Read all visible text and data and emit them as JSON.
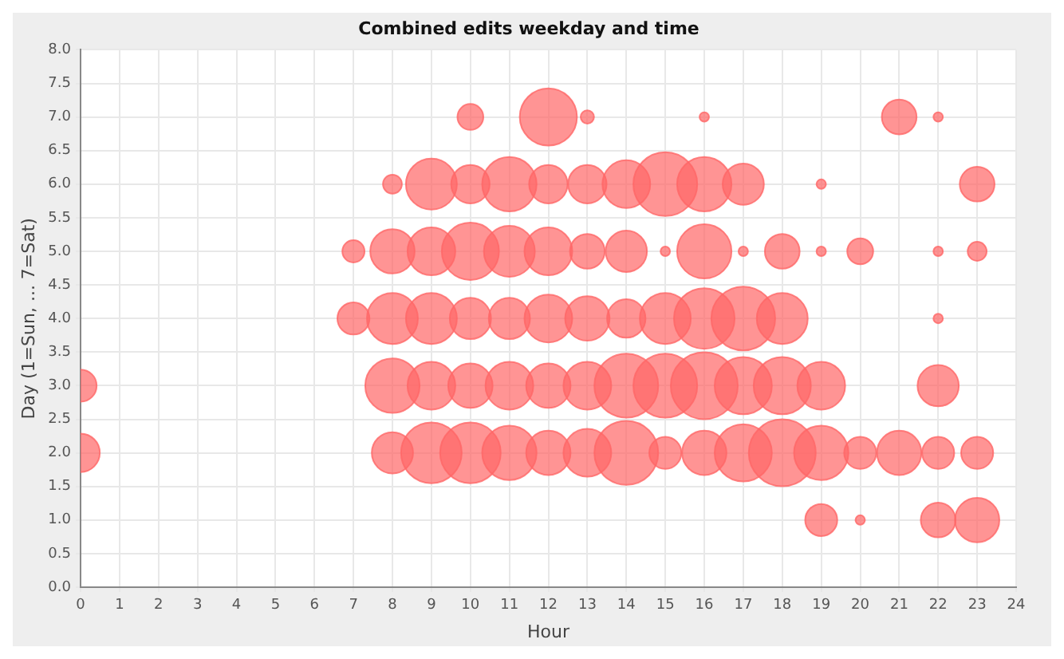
{
  "chart_data": {
    "type": "bubble",
    "title": "Combined edits weekday and time",
    "xlabel": "Hour",
    "ylabel": "Day (1=Sun, ... 7=Sat)",
    "grid": true,
    "legend": false,
    "color": "#ff6666",
    "xlim": [
      0,
      24
    ],
    "xticks": [
      0,
      1,
      2,
      3,
      4,
      5,
      6,
      7,
      8,
      9,
      10,
      11,
      12,
      13,
      14,
      15,
      16,
      17,
      18,
      19,
      20,
      21,
      22,
      23,
      24
    ],
    "ylim": [
      0,
      8
    ],
    "yticks": [
      {
        "value": 0,
        "label": "0.0"
      },
      {
        "value": 0.5,
        "label": "0.5"
      },
      {
        "value": 1,
        "label": "1.0"
      },
      {
        "value": 1.5,
        "label": "1.5"
      },
      {
        "value": 2,
        "label": "2.0"
      },
      {
        "value": 2.5,
        "label": "2.5"
      },
      {
        "value": 3,
        "label": "3.0"
      },
      {
        "value": 3.5,
        "label": "3.5"
      },
      {
        "value": 4,
        "label": "4.0"
      },
      {
        "value": 4.5,
        "label": "4.5"
      },
      {
        "value": 5,
        "label": "5.0"
      },
      {
        "value": 5.5,
        "label": "5.5"
      },
      {
        "value": 6,
        "label": "6.0"
      },
      {
        "value": 6.5,
        "label": "6.5"
      },
      {
        "value": 7,
        "label": "7.0"
      },
      {
        "value": 7.5,
        "label": "7.5"
      },
      {
        "value": 8,
        "label": "8.0"
      }
    ],
    "x": [
      10,
      12,
      13,
      16,
      21,
      22,
      8,
      9,
      10,
      11,
      12,
      13,
      14,
      15,
      16,
      17,
      19,
      23,
      7,
      8,
      9,
      10,
      11,
      12,
      13,
      14,
      15,
      16,
      17,
      18,
      19,
      20,
      22,
      23,
      7,
      8,
      9,
      10,
      11,
      12,
      13,
      14,
      15,
      16,
      17,
      18,
      22,
      0,
      8,
      9,
      10,
      11,
      12,
      13,
      14,
      15,
      16,
      17,
      18,
      19,
      22,
      0,
      8,
      9,
      10,
      11,
      12,
      13,
      14,
      15,
      16,
      17,
      18,
      19,
      20,
      21,
      22,
      23,
      19,
      20,
      22,
      23
    ],
    "values": [
      7,
      7,
      7,
      7,
      7,
      7,
      6,
      6,
      6,
      6,
      6,
      6,
      6,
      6,
      6,
      6,
      6,
      6,
      5,
      5,
      5,
      5,
      5,
      5,
      5,
      5,
      5,
      5,
      5,
      5,
      5,
      5,
      5,
      5,
      4,
      4,
      4,
      4,
      4,
      4,
      4,
      4,
      4,
      4,
      4,
      4,
      4,
      3,
      3,
      3,
      3,
      3,
      3,
      3,
      3,
      3,
      3,
      3,
      3,
      3,
      3,
      2,
      2,
      2,
      2,
      2,
      2,
      2,
      2,
      2,
      2,
      2,
      2,
      2,
      2,
      2,
      2,
      2,
      1,
      1,
      1,
      1
    ],
    "sizes": [
      0.15,
      0.73,
      0.04,
      0.02,
      0.27,
      0.02,
      0.08,
      0.58,
      0.33,
      0.66,
      0.33,
      0.33,
      0.51,
      0.91,
      0.66,
      0.38,
      0.02,
      0.27,
      0.11,
      0.44,
      0.51,
      0.73,
      0.58,
      0.51,
      0.27,
      0.38,
      0.02,
      0.66,
      0.02,
      0.27,
      0.02,
      0.15,
      0.02,
      0.08,
      0.23,
      0.58,
      0.58,
      0.38,
      0.38,
      0.51,
      0.44,
      0.33,
      0.58,
      0.82,
      0.91,
      0.58,
      0.02,
      0.23,
      0.66,
      0.51,
      0.44,
      0.51,
      0.44,
      0.51,
      0.91,
      0.91,
      1,
      0.73,
      0.73,
      0.51,
      0.38,
      0.33,
      0.38,
      0.82,
      0.82,
      0.66,
      0.44,
      0.51,
      0.91,
      0.23,
      0.44,
      0.73,
      1,
      0.66,
      0.23,
      0.44,
      0.23,
      0.23,
      0.23,
      0.02,
      0.27,
      0.44
    ]
  }
}
